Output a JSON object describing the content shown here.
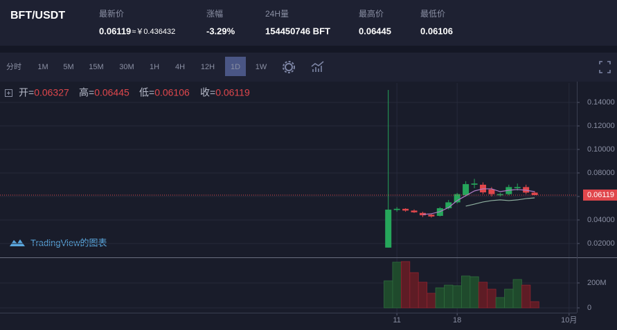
{
  "header": {
    "pair": "BFT/USDT",
    "fields": [
      {
        "label": "最新价",
        "value": "0.06119",
        "sub": "≈￥0.436432"
      },
      {
        "label": "涨幅",
        "value": "-3.29%"
      },
      {
        "label": "24H量",
        "value": "154450746 BFT"
      },
      {
        "label": "最高价",
        "value": "0.06445"
      },
      {
        "label": "最低价",
        "value": "0.06106"
      }
    ]
  },
  "toolbar": {
    "intervals": [
      "分时",
      "1M",
      "5M",
      "15M",
      "30M",
      "1H",
      "4H",
      "12H",
      "1D",
      "1W"
    ],
    "selected": 8
  },
  "legend": {
    "labels": [
      "开=",
      "高=",
      "低=",
      "收="
    ]
  },
  "watermark": "TradingView的图表",
  "chart_data": [
    {
      "type": "candlestick",
      "x": [
        10,
        11,
        12,
        13,
        14,
        15,
        16,
        17,
        18,
        19,
        20,
        21,
        22,
        23,
        24,
        25,
        26,
        27
      ],
      "open": [
        0.0165,
        0.0485,
        0.0495,
        0.048,
        0.046,
        0.0445,
        0.0435,
        0.05,
        0.055,
        0.061,
        0.07,
        0.07,
        0.066,
        0.061,
        0.062,
        0.067,
        0.068,
        0.06327
      ],
      "high": [
        0.1506,
        0.051,
        0.05,
        0.049,
        0.047,
        0.045,
        0.051,
        0.057,
        0.063,
        0.073,
        0.075,
        0.072,
        0.068,
        0.063,
        0.07,
        0.071,
        0.07,
        0.06445
      ],
      "low": [
        0.0165,
        0.047,
        0.047,
        0.046,
        0.0425,
        0.042,
        0.043,
        0.049,
        0.054,
        0.06,
        0.067,
        0.062,
        0.06,
        0.06,
        0.061,
        0.065,
        0.062,
        0.06106
      ],
      "close": [
        0.0488,
        0.0495,
        0.048,
        0.0465,
        0.044,
        0.043,
        0.05,
        0.055,
        0.062,
        0.0705,
        0.071,
        0.0635,
        0.062,
        0.062,
        0.068,
        0.068,
        0.0633,
        0.06119
      ],
      "up_color": "#26a65b",
      "down_color": "#e0474c",
      "lines": [
        {
          "color": "#b07cc6",
          "values": [
            null,
            null,
            null,
            null,
            0.0447,
            0.0453,
            0.0471,
            0.0506,
            0.0565,
            0.0606,
            0.0647,
            0.0665,
            0.0665,
            0.0641,
            0.0653,
            0.0659,
            0.0653,
            0.0641
          ]
        },
        {
          "color": "#8fb0a0",
          "values": [
            null,
            null,
            null,
            null,
            null,
            null,
            null,
            null,
            null,
            0.0518,
            0.0535,
            0.0553,
            0.0565,
            0.0571,
            0.0565,
            0.0571,
            0.0582,
            0.0588
          ]
        }
      ],
      "last_price": 0.06119,
      "last_price_color": "#e0474c",
      "xlim": [
        -35.1,
        31.9
      ],
      "xticks": [
        {
          "value": 11,
          "label": "11"
        },
        18,
        {
          "value": 31,
          "label": "10月"
        }
      ],
      "ylim": [
        0.0082,
        0.1565
      ],
      "yticks": [
        {
          "value": 0.02,
          "label": "0.02000"
        },
        {
          "value": 0.04,
          "label": "0.04000"
        },
        {
          "value": 0.06,
          "label": "0.06000"
        },
        {
          "value": 0.08,
          "label": "0.08000"
        },
        {
          "value": 0.1,
          "label": "0.10000"
        },
        {
          "value": 0.12,
          "label": "0.12000"
        },
        {
          "value": 0.14,
          "label": "0.14000"
        }
      ],
      "grid": true
    },
    {
      "type": "bar",
      "x": [
        10,
        11,
        12,
        13,
        14,
        15,
        16,
        17,
        18,
        19,
        20,
        21,
        22,
        23,
        24,
        25,
        26,
        27
      ],
      "values": [
        217000000,
        367000000,
        372000000,
        283000000,
        206000000,
        117000000,
        161000000,
        183000000,
        178000000,
        256000000,
        250000000,
        206000000,
        150000000,
        83000000,
        150000000,
        228000000,
        183000000,
        50000000
      ],
      "up_color": "#1f4a2c",
      "down_color": "#5e1c25",
      "xlim": [
        -35.1,
        31.9
      ],
      "xticks": [
        {
          "value": 11,
          "label": "11"
        },
        18,
        {
          "value": 31,
          "label": "10月"
        }
      ],
      "ylim": [
        -38900000,
        400000000
      ],
      "yticks": [
        0,
        {
          "value": 200000000,
          "label": "200M"
        }
      ],
      "grid": true
    }
  ]
}
